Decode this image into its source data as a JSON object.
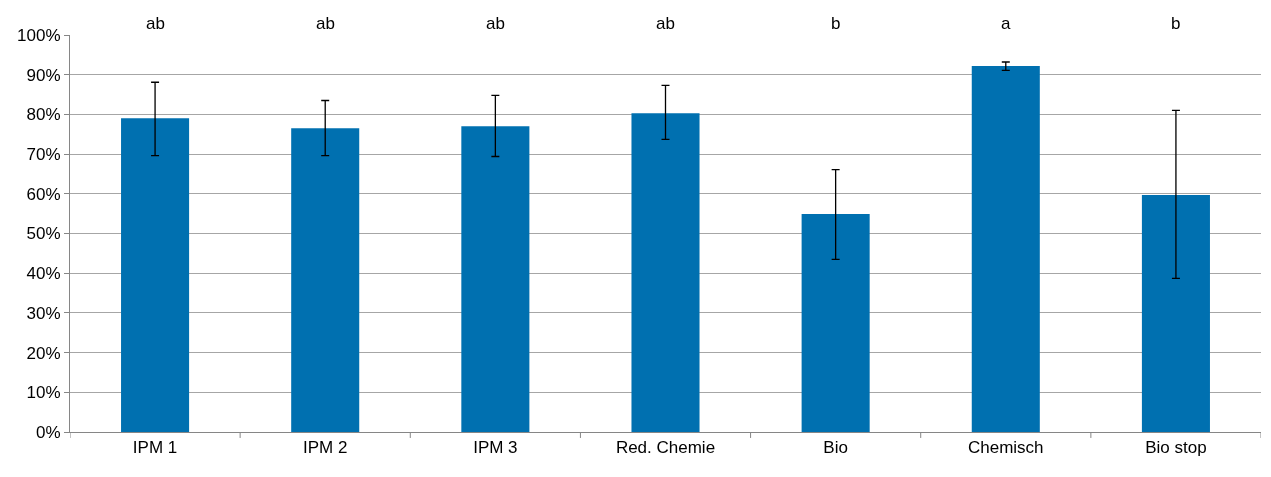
{
  "chart_data": {
    "type": "bar",
    "categories": [
      "IPM 1",
      "IPM 2",
      "IPM 3",
      "Red. Chemie",
      "Bio",
      "Chemisch",
      "Bio stop"
    ],
    "values": [
      79.0,
      76.5,
      77.0,
      80.3,
      54.9,
      92.2,
      59.7
    ],
    "errors": [
      [
        69.6,
        88.1
      ],
      [
        69.6,
        83.5
      ],
      [
        69.4,
        84.8
      ],
      [
        73.7,
        87.3
      ],
      [
        43.5,
        66.1
      ],
      [
        91.1,
        93.2
      ],
      [
        38.7,
        81.0
      ]
    ],
    "color": "#0070b0",
    "ylim": [
      0,
      100
    ],
    "yticks": [
      {
        "value": 0,
        "label": "0%"
      },
      {
        "value": 10,
        "label": "10%"
      },
      {
        "value": 20,
        "label": "20%"
      },
      {
        "value": 30,
        "label": "30%"
      },
      {
        "value": 40,
        "label": "40%"
      },
      {
        "value": 50,
        "label": "50%"
      },
      {
        "value": 60,
        "label": "60%"
      },
      {
        "value": 70,
        "label": "70%"
      },
      {
        "value": 80,
        "label": "80%"
      },
      {
        "value": 90,
        "label": "90%"
      },
      {
        "value": 100,
        "label": "100%"
      }
    ],
    "grid": "y",
    "annotations": [
      "ab",
      "ab",
      "ab",
      "ab",
      "b",
      "a",
      "b"
    ]
  }
}
